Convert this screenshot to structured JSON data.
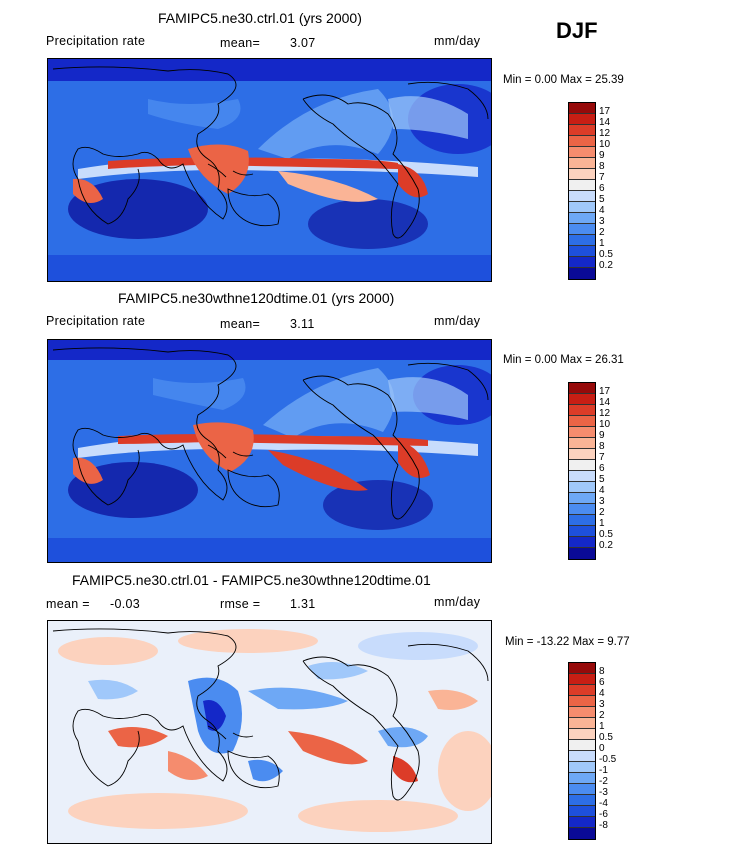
{
  "season": "DJF",
  "colors": {
    "abs_scale": [
      "#0a0a96",
      "#1428c8",
      "#1e50dc",
      "#2d6ee6",
      "#4b8cf0",
      "#6ea8f5",
      "#a0c8fa",
      "#c8dcfc",
      "#f0f0f0",
      "#fcd2be",
      "#fab496",
      "#f58c6e",
      "#eb6446",
      "#dc3c28",
      "#c81e14",
      "#960a0a"
    ],
    "diff_scale": [
      "#0a0a96",
      "#1428c8",
      "#1e50dc",
      "#2d6ee6",
      "#4b8cf0",
      "#6ea8f5",
      "#a0c8fa",
      "#c8dcfc",
      "#f0f0f0",
      "#fcd2be",
      "#fab496",
      "#f58c6e",
      "#eb6446",
      "#dc3c28",
      "#c81e14",
      "#960a0a"
    ]
  },
  "panels": [
    {
      "title": "FAMIPC5.ne30.ctrl.01 (yrs 2000)",
      "left_label": "Precipitation rate",
      "stat_label": "mean=",
      "stat_value": "3.07",
      "units": "mm/day",
      "minmax": "Min =   0.00 Max =  25.39",
      "colorbar_labels": [
        "17",
        "14",
        "12",
        "10",
        "9",
        "8",
        "7",
        "6",
        "5",
        "4",
        "3",
        "2",
        "1",
        "0.5",
        "0.2"
      ]
    },
    {
      "title": "FAMIPC5.ne30wthne120dtime.01 (yrs 2000)",
      "left_label": "Precipitation rate",
      "stat_label": "mean=",
      "stat_value": "3.11",
      "units": "mm/day",
      "minmax": "Min =   0.00 Max =  26.31",
      "colorbar_labels": [
        "17",
        "14",
        "12",
        "10",
        "9",
        "8",
        "7",
        "6",
        "5",
        "4",
        "3",
        "2",
        "1",
        "0.5",
        "0.2"
      ]
    },
    {
      "title": "FAMIPC5.ne30.ctrl.01 - FAMIPC5.ne30wthne120dtime.01",
      "left_label": "mean =",
      "left_value": "-0.03",
      "stat_label": "rmse =",
      "stat_value": "1.31",
      "units": "mm/day",
      "minmax": "Min = -13.22 Max =   9.77",
      "colorbar_labels": [
        "8",
        "6",
        "4",
        "3",
        "2",
        "1",
        "0.5",
        "0",
        "-0.5",
        "-1",
        "-2",
        "-3",
        "-4",
        "-6",
        "-8"
      ]
    }
  ]
}
